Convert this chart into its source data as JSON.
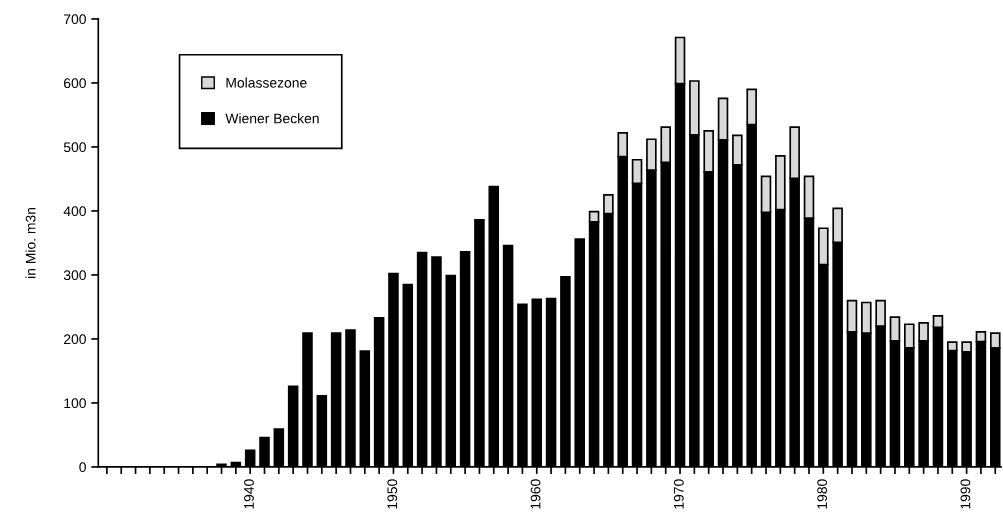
{
  "chart_data": {
    "type": "bar",
    "stacked": true,
    "ylabel": "in Mio. m3n",
    "x": [
      1930,
      1931,
      1932,
      1933,
      1934,
      1935,
      1936,
      1937,
      1938,
      1939,
      1940,
      1941,
      1942,
      1943,
      1944,
      1945,
      1946,
      1947,
      1948,
      1949,
      1950,
      1951,
      1952,
      1953,
      1954,
      1955,
      1956,
      1957,
      1958,
      1959,
      1960,
      1961,
      1962,
      1963,
      1964,
      1965,
      1966,
      1967,
      1968,
      1969,
      1970,
      1971,
      1972,
      1973,
      1974,
      1975,
      1976,
      1977,
      1978,
      1979,
      1980,
      1981,
      1982,
      1983,
      1984,
      1985,
      1986,
      1987,
      1988,
      1989,
      1990,
      1991,
      1992
    ],
    "series": [
      {
        "name": "Wiener Becken",
        "color": "#000000",
        "values": [
          0,
          0,
          0,
          0,
          0,
          0,
          0,
          0,
          4,
          7,
          26,
          46,
          59,
          126,
          209,
          111,
          209,
          214,
          181,
          233,
          302,
          285,
          335,
          328,
          299,
          336,
          386,
          438,
          346,
          254,
          262,
          263,
          297,
          356,
          383,
          396,
          485,
          443,
          464,
          476,
          599,
          519,
          461,
          511,
          472,
          535,
          398,
          402,
          451,
          389,
          316,
          351,
          211,
          209,
          220,
          197,
          186,
          197,
          218,
          182,
          180,
          196,
          186
        ]
      },
      {
        "name": "Molassezone",
        "color": "#d9d9d9",
        "values": [
          null,
          null,
          null,
          null,
          null,
          null,
          null,
          null,
          null,
          null,
          null,
          null,
          null,
          null,
          null,
          null,
          null,
          null,
          null,
          null,
          null,
          null,
          null,
          null,
          null,
          null,
          null,
          null,
          null,
          null,
          null,
          null,
          null,
          null,
          16,
          29,
          37,
          37,
          48,
          55,
          72,
          84,
          64,
          65,
          46,
          55,
          56,
          84,
          80,
          65,
          57,
          53,
          49,
          48,
          40,
          37,
          37,
          28,
          18,
          13,
          15,
          15,
          23
        ]
      }
    ],
    "xlim": [
      1929.4,
      1992.4
    ],
    "xticks": [
      {
        "value": 1930,
        "label": null
      },
      {
        "value": 1931,
        "label": null
      },
      {
        "value": 1932,
        "label": null
      },
      {
        "value": 1933,
        "label": null
      },
      {
        "value": 1934,
        "label": null
      },
      {
        "value": 1935,
        "label": null
      },
      {
        "value": 1936,
        "label": null
      },
      {
        "value": 1937,
        "label": null
      },
      {
        "value": 1938,
        "label": null
      },
      {
        "value": 1939,
        "label": null
      },
      1940,
      {
        "value": 1941,
        "label": null
      },
      {
        "value": 1942,
        "label": null
      },
      {
        "value": 1943,
        "label": null
      },
      {
        "value": 1944,
        "label": null
      },
      {
        "value": 1945,
        "label": null
      },
      {
        "value": 1946,
        "label": null
      },
      {
        "value": 1947,
        "label": null
      },
      {
        "value": 1948,
        "label": null
      },
      {
        "value": 1949,
        "label": null
      },
      1950,
      {
        "value": 1951,
        "label": null
      },
      {
        "value": 1952,
        "label": null
      },
      {
        "value": 1953,
        "label": null
      },
      {
        "value": 1954,
        "label": null
      },
      {
        "value": 1955,
        "label": null
      },
      {
        "value": 1956,
        "label": null
      },
      {
        "value": 1957,
        "label": null
      },
      {
        "value": 1958,
        "label": null
      },
      {
        "value": 1959,
        "label": null
      },
      1960,
      {
        "value": 1961,
        "label": null
      },
      {
        "value": 1962,
        "label": null
      },
      {
        "value": 1963,
        "label": null
      },
      {
        "value": 1964,
        "label": null
      },
      {
        "value": 1965,
        "label": null
      },
      {
        "value": 1966,
        "label": null
      },
      {
        "value": 1967,
        "label": null
      },
      {
        "value": 1968,
        "label": null
      },
      {
        "value": 1969,
        "label": null
      },
      1970,
      {
        "value": 1971,
        "label": null
      },
      {
        "value": 1972,
        "label": null
      },
      {
        "value": 1973,
        "label": null
      },
      {
        "value": 1974,
        "label": null
      },
      {
        "value": 1975,
        "label": null
      },
      {
        "value": 1976,
        "label": null
      },
      {
        "value": 1977,
        "label": null
      },
      {
        "value": 1978,
        "label": null
      },
      {
        "value": 1979,
        "label": null
      },
      1980,
      {
        "value": 1981,
        "label": null
      },
      {
        "value": 1982,
        "label": null
      },
      {
        "value": 1983,
        "label": null
      },
      {
        "value": 1984,
        "label": null
      },
      {
        "value": 1985,
        "label": null
      },
      {
        "value": 1986,
        "label": null
      },
      {
        "value": 1987,
        "label": null
      },
      {
        "value": 1988,
        "label": null
      },
      {
        "value": 1989,
        "label": null
      },
      1990,
      {
        "value": 1991,
        "label": null
      },
      {
        "value": 1992,
        "label": null
      }
    ],
    "ylim": [
      0,
      700
    ],
    "yticks": [
      0,
      100,
      200,
      300,
      400,
      500,
      600,
      700
    ],
    "legend": "top left",
    "grid": false
  }
}
